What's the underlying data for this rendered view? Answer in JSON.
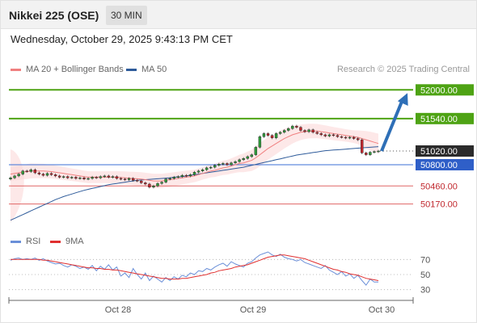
{
  "header": {
    "title": "Nikkei 225 (OSE)",
    "timeframe": "30 MIN"
  },
  "datetime": "Wednesday, October 29, 2025 9:43:13 PM CET",
  "legend": {
    "ma20_label": "MA 20 + Bollinger Bands",
    "ma50_label": "MA 50"
  },
  "credit": "Research © 2025 Trading Central",
  "rsi_legend": {
    "rsi_label": "RSI",
    "ma_label": "9MA"
  },
  "colors": {
    "ma20": "#f08080",
    "ma50": "#2e5b9a",
    "bands": "#fbd5d5",
    "up_candle": "#2f9a3a",
    "down_candle": "#c0272d",
    "target": "#4ea314",
    "pivot": "#3b6fd6",
    "support": "#e06666",
    "arrow": "#2e6fb7",
    "rsi": "#6a8fd8",
    "rsi_ma": "#e03030"
  },
  "chart_data": [
    {
      "type": "candlestick",
      "title": "Nikkei 225 (OSE)",
      "ylim": [
        49790,
        52250
      ],
      "x_ticks": [
        "Oct 28",
        "Oct 29",
        "Oct 30"
      ],
      "levels": [
        {
          "value": 52000,
          "label": "52000.00",
          "kind": "target"
        },
        {
          "value": 51540,
          "label": "51540.00",
          "kind": "target"
        },
        {
          "value": 51020,
          "label": "51020.00",
          "kind": "current"
        },
        {
          "value": 50800,
          "label": "50800.00",
          "kind": "pivot"
        },
        {
          "value": 50460,
          "label": "50460.00",
          "kind": "support"
        },
        {
          "value": 50170,
          "label": "50170.00",
          "kind": "support"
        }
      ],
      "close": [
        50590,
        50620,
        50650,
        50700,
        50690,
        50720,
        50670,
        50650,
        50630,
        50660,
        50640,
        50620,
        50600,
        50610,
        50590,
        50600,
        50580,
        50590,
        50570,
        50580,
        50600,
        50590,
        50610,
        50620,
        50600,
        50610,
        50580,
        50570,
        50560,
        50580,
        50550,
        50540,
        50510,
        50490,
        50440,
        50460,
        50500,
        50520,
        50570,
        50580,
        50600,
        50610,
        50630,
        50620,
        50640,
        50680,
        50700,
        50720,
        50750,
        50760,
        50790,
        50810,
        50820,
        50800,
        50830,
        50850,
        50880,
        50900,
        50930,
        50960,
        51080,
        51250,
        51300,
        51270,
        51230,
        51300,
        51320,
        51350,
        51380,
        51420,
        51400,
        51350,
        51330,
        51360,
        51320,
        51300,
        51280,
        51260,
        51280,
        51270,
        51250,
        51240,
        51230,
        51240,
        51220,
        51200,
        50990,
        50960,
        51000,
        51010,
        51020
      ],
      "ma20": [
        50650,
        50660,
        50670,
        50680,
        50690,
        50700,
        50700,
        50700,
        50700,
        50695,
        50690,
        50680,
        50670,
        50660,
        50650,
        50640,
        50630,
        50620,
        50610,
        50600,
        50600,
        50600,
        50600,
        50600,
        50600,
        50600,
        50600,
        50595,
        50590,
        50585,
        50580,
        50575,
        50570,
        50560,
        50550,
        50540,
        50540,
        50540,
        50550,
        50560,
        50570,
        50580,
        50590,
        50600,
        50610,
        50620,
        50640,
        50660,
        50680,
        50700,
        50710,
        50730,
        50750,
        50760,
        50780,
        50800,
        50820,
        50830,
        50850,
        50870,
        50910,
        50960,
        51010,
        51060,
        51100,
        51140,
        51180,
        51220,
        51250,
        51280,
        51300,
        51320,
        51330,
        51340,
        51340,
        51340,
        51330,
        51320,
        51310,
        51300,
        51290,
        51280,
        51270,
        51260,
        51250,
        51240,
        51220,
        51200,
        51180,
        51160,
        51140
      ],
      "ma50": [
        49910,
        49940,
        49970,
        50000,
        50030,
        50060,
        50090,
        50120,
        50150,
        50180,
        50210,
        50240,
        50265,
        50290,
        50310,
        50330,
        50350,
        50370,
        50390,
        50405,
        50420,
        50435,
        50450,
        50465,
        50480,
        50490,
        50500,
        50510,
        50520,
        50530,
        50540,
        50550,
        50555,
        50560,
        50565,
        50570,
        50575,
        50580,
        50585,
        50590,
        50600,
        50605,
        50610,
        50620,
        50630,
        50640,
        50650,
        50660,
        50670,
        50680,
        50690,
        50700,
        50710,
        50720,
        50730,
        50740,
        50750,
        50760,
        50775,
        50790,
        50805,
        50820,
        50835,
        50850,
        50865,
        50880,
        50895,
        50910,
        50925,
        50940,
        50955,
        50965,
        50975,
        50985,
        50995,
        51005,
        51015,
        51025,
        51030,
        51035,
        51040,
        51045,
        51050,
        51055,
        51060,
        51065,
        51070,
        51075,
        51080,
        51085,
        51090
      ],
      "forecast_arrow": {
        "from": 51020,
        "to": 52000
      }
    },
    {
      "type": "line",
      "title": "RSI",
      "ylim": [
        20,
        80
      ],
      "y_ticks": [
        70,
        50,
        30
      ],
      "series": [
        {
          "name": "RSI",
          "values": [
            69,
            71,
            72,
            70,
            71,
            70,
            72,
            69,
            71,
            68,
            66,
            64,
            65,
            62,
            60,
            63,
            61,
            58,
            60,
            57,
            62,
            55,
            61,
            57,
            63,
            56,
            60,
            48,
            52,
            46,
            58,
            50,
            44,
            52,
            42,
            48,
            44,
            40,
            46,
            42,
            47,
            44,
            49,
            47,
            52,
            50,
            55,
            54,
            58,
            56,
            60,
            63,
            65,
            61,
            67,
            64,
            62,
            60,
            65,
            67,
            72,
            76,
            78,
            80,
            76,
            74,
            77,
            73,
            71,
            70,
            68,
            70,
            66,
            64,
            62,
            60,
            58,
            62,
            56,
            53,
            50,
            54,
            48,
            51,
            45,
            49,
            42,
            36,
            44,
            40,
            40
          ]
        },
        {
          "name": "9MA",
          "values": [
            70,
            70,
            70,
            70,
            70,
            70,
            70,
            70,
            69,
            69,
            68,
            67,
            66,
            65,
            64,
            63,
            62,
            61,
            60,
            59,
            59,
            58,
            58,
            57,
            57,
            56,
            56,
            55,
            54,
            53,
            52,
            51,
            50,
            49,
            48,
            47,
            46,
            45,
            45,
            44,
            44,
            44,
            45,
            45,
            46,
            47,
            48,
            49,
            50,
            52,
            53,
            55,
            56,
            57,
            58,
            60,
            61,
            62,
            63,
            65,
            67,
            69,
            71,
            73,
            74,
            75,
            76,
            76,
            75,
            74,
            73,
            72,
            71,
            69,
            67,
            65,
            63,
            61,
            59,
            57,
            56,
            54,
            53,
            51,
            50,
            49,
            47,
            45,
            44,
            43,
            42
          ]
        }
      ]
    }
  ]
}
